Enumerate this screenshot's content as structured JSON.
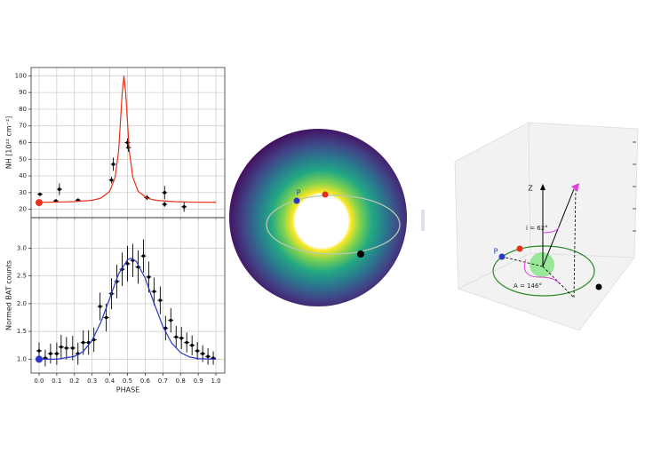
{
  "chart_data": [
    {
      "type": "scatter",
      "ylabel": "NH [10²² cm⁻²]",
      "ylim": [
        15,
        105
      ],
      "yticks": [
        20,
        30,
        40,
        50,
        60,
        70,
        80,
        90,
        100
      ],
      "xlim": [
        -0.045,
        1.05
      ],
      "grid": true,
      "series": [
        {
          "kind": "points",
          "color": "#000000",
          "x": [
            0.005,
            0.095,
            0.115,
            0.22,
            0.41,
            0.42,
            0.5,
            0.505,
            0.61,
            0.71,
            0.71,
            0.82
          ],
          "values": [
            29,
            25,
            32,
            25.5,
            37.5,
            47,
            60,
            57,
            27,
            30,
            23,
            21.5
          ],
          "errors": [
            1,
            1,
            3.5,
            1,
            2,
            4,
            2.5,
            2.5,
            1.5,
            4,
            1.5,
            3
          ]
        },
        {
          "kind": "line",
          "color": "#e8301c",
          "x": [
            0,
            0.1,
            0.2,
            0.3,
            0.35,
            0.4,
            0.43,
            0.45,
            0.47,
            0.48,
            0.49,
            0.51,
            0.53,
            0.56,
            0.61,
            0.66,
            0.76,
            0.86,
            0.96,
            1.0
          ],
          "values": [
            24.2,
            24.3,
            24.6,
            25.4,
            26.7,
            30.8,
            39.2,
            55.1,
            89.5,
            100,
            89.5,
            55.1,
            39.2,
            30.8,
            26.7,
            25.4,
            24.6,
            24.3,
            24.2,
            24.2
          ]
        },
        {
          "kind": "marker",
          "color": "#e8301c",
          "x": [
            0.0
          ],
          "values": [
            24
          ]
        }
      ]
    },
    {
      "type": "scatter",
      "ylabel": "Normed BAT counts",
      "xlabel": "PHASE",
      "ylim": [
        0.75,
        3.55
      ],
      "yticks": [
        {
          "value": 1.0,
          "label": "1.0"
        },
        1.5,
        {
          "value": 2.0,
          "label": "2.0"
        },
        2.5,
        {
          "value": 3.0,
          "label": "3.0"
        }
      ],
      "xlim": [
        -0.045,
        1.05
      ],
      "xticks": [
        {
          "value": 0,
          "label": "0.0"
        },
        0.1,
        0.2,
        0.3,
        0.4,
        0.5,
        0.6,
        0.7,
        0.8,
        0.9,
        {
          "value": 1,
          "label": "1.0"
        }
      ],
      "grid": true,
      "series": [
        {
          "kind": "points",
          "color": "#000000",
          "x": [
            0.0,
            0.035,
            0.065,
            0.1,
            0.125,
            0.155,
            0.19,
            0.22,
            0.25,
            0.28,
            0.31,
            0.345,
            0.38,
            0.41,
            0.44,
            0.47,
            0.5,
            0.53,
            0.56,
            0.59,
            0.62,
            0.65,
            0.685,
            0.715,
            0.745,
            0.775,
            0.805,
            0.835,
            0.865,
            0.895,
            0.925,
            0.955,
            0.985
          ],
          "values": [
            1.15,
            1.02,
            1.1,
            1.1,
            1.22,
            1.2,
            1.2,
            1.1,
            1.3,
            1.3,
            1.35,
            1.95,
            1.75,
            2.18,
            2.4,
            2.62,
            2.72,
            2.78,
            2.66,
            2.86,
            2.48,
            2.22,
            2.06,
            1.56,
            1.7,
            1.4,
            1.38,
            1.3,
            1.25,
            1.15,
            1.1,
            1.05,
            1.02
          ],
          "errors": [
            0.15,
            0.15,
            0.18,
            0.2,
            0.22,
            0.2,
            0.22,
            0.2,
            0.22,
            0.22,
            0.22,
            0.25,
            0.25,
            0.28,
            0.3,
            0.3,
            0.32,
            0.3,
            0.3,
            0.3,
            0.28,
            0.25,
            0.25,
            0.22,
            0.22,
            0.2,
            0.2,
            0.18,
            0.18,
            0.16,
            0.15,
            0.15,
            0.12
          ]
        },
        {
          "kind": "line",
          "color": "#2a36c8",
          "x": [
            0,
            0.1,
            0.2,
            0.25,
            0.3,
            0.35,
            0.4,
            0.45,
            0.5,
            0.52,
            0.55,
            0.6,
            0.65,
            0.7,
            0.75,
            0.8,
            0.85,
            0.9,
            1.0
          ],
          "values": [
            1.0,
            1.0,
            1.05,
            1.14,
            1.34,
            1.67,
            2.1,
            2.54,
            2.79,
            2.82,
            2.76,
            2.46,
            2.01,
            1.59,
            1.29,
            1.12,
            1.04,
            1.01,
            1.0
          ]
        },
        {
          "kind": "marker",
          "color": "#2a36c8",
          "x": [
            0.0
          ],
          "values": [
            1.0
          ]
        }
      ]
    }
  ],
  "orbit_view": {
    "periastron_label": "P"
  },
  "orbit_3d": {
    "axis_label": "Z",
    "inclination_label": "i = 62°",
    "azimuth_label": "A = 146°",
    "periastron_label": "P"
  }
}
